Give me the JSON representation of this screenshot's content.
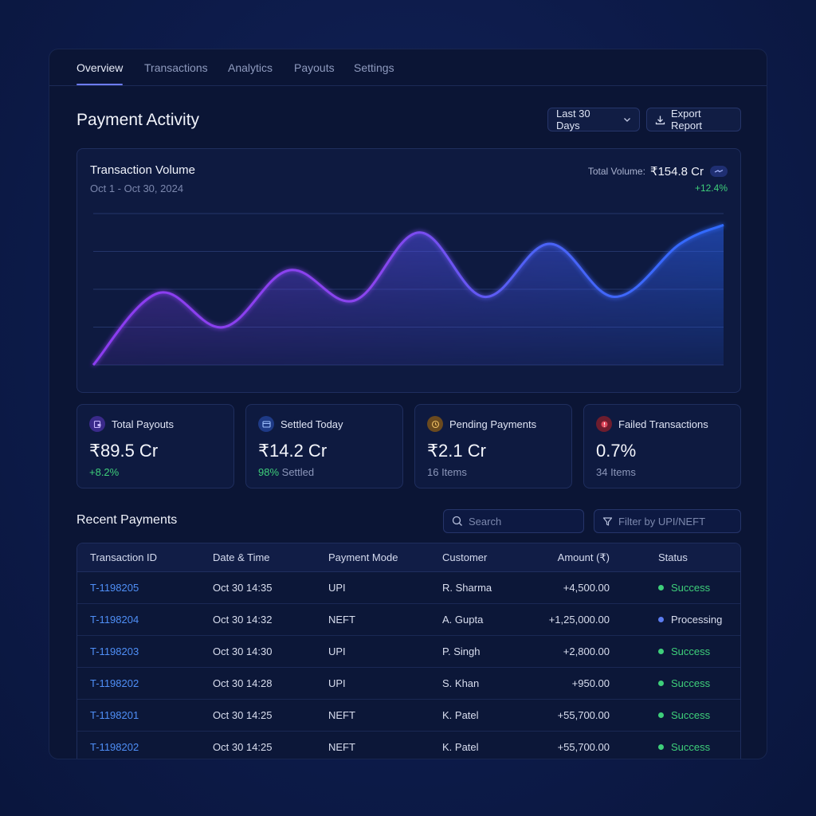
{
  "tabs": [
    {
      "label": "Overview",
      "active": true
    },
    {
      "label": "Transactions",
      "active": false
    },
    {
      "label": "Analytics",
      "active": false
    },
    {
      "label": "Payouts",
      "active": false
    },
    {
      "label": "Settings",
      "active": false
    }
  ],
  "header": {
    "title": "Payment Activity",
    "range_label": "Last 30 Days",
    "export_label": "Export Report"
  },
  "volume_chart": {
    "title": "Transaction Volume",
    "subtitle": "Oct 1 - Oct 30, 2024",
    "total_label": "Total Volume:",
    "total_value": "₹154.8 Cr",
    "change": "+12.4%"
  },
  "chart_data": {
    "type": "area",
    "title": "Transaction Volume",
    "subtitle": "Oct 1 - Oct 30, 2024",
    "xlabel": "",
    "ylabel": "",
    "grid": true,
    "x": [
      1,
      4,
      7,
      10,
      13,
      16,
      19,
      22,
      25,
      28,
      30
    ],
    "y": [
      0,
      1.9,
      1.0,
      2.5,
      1.7,
      3.5,
      1.8,
      3.2,
      1.8,
      3.2,
      3.7
    ],
    "ylim": [
      0,
      4
    ],
    "colors": {
      "start": "#8b3cf0",
      "end": "#2f6bff"
    }
  },
  "stats": [
    {
      "label": "Total Payouts",
      "value": "₹89.5 Cr",
      "sub_highlight": "+8.2%",
      "sub_text": "",
      "icon": "wallet-icon",
      "icon_color": "#7b4dff"
    },
    {
      "label": "Settled Today",
      "value": "₹14.2 Cr",
      "sub_highlight": "98%",
      "sub_text": " Settled",
      "icon": "card-icon",
      "icon_color": "#3d7df5"
    },
    {
      "label": "Pending Payments",
      "value": "₹2.1 Cr",
      "sub_highlight": "",
      "sub_text": "16 Items",
      "icon": "clock-icon",
      "icon_color": "#e0a23a"
    },
    {
      "label": "Failed Transactions",
      "value": "0.7%",
      "sub_highlight": "",
      "sub_text": "34 Items",
      "icon": "alert-icon",
      "icon_color": "#e0465a"
    }
  ],
  "recent": {
    "title": "Recent Payments",
    "search_placeholder": "Search",
    "filter_placeholder": "Filter by UPI/NEFT",
    "columns": [
      "Transaction ID",
      "Date & Time",
      "Payment Mode",
      "Customer",
      "Amount (₹)",
      "Status"
    ],
    "rows": [
      {
        "id": "T-1198205",
        "datetime": "Oct 30 14:35",
        "mode": "UPI",
        "customer": "R. Sharma",
        "amount": "+4,500.00",
        "status": "Success"
      },
      {
        "id": "T-1198204",
        "datetime": "Oct 30 14:32",
        "mode": "NEFT",
        "customer": "A. Gupta",
        "amount": "+1,25,000.00",
        "status": "Processing"
      },
      {
        "id": "T-1198203",
        "datetime": "Oct 30 14:30",
        "mode": "UPI",
        "customer": "P. Singh",
        "amount": "+2,800.00",
        "status": "Success"
      },
      {
        "id": "T-1198202",
        "datetime": "Oct 30 14:28",
        "mode": "UPI",
        "customer": "S. Khan",
        "amount": "+950.00",
        "status": "Success"
      },
      {
        "id": "T-1198201",
        "datetime": "Oct 30 14:25",
        "mode": "NEFT",
        "customer": "K. Patel",
        "amount": "+55,700.00",
        "status": "Success"
      },
      {
        "id": "T-1198202",
        "datetime": "Oct 30 14:25",
        "mode": "NEFT",
        "customer": "K. Patel",
        "amount": "+55,700.00",
        "status": "Success"
      }
    ],
    "status_colors": {
      "Success": "#3ecf7a",
      "Processing": "#5b7cf0"
    }
  }
}
